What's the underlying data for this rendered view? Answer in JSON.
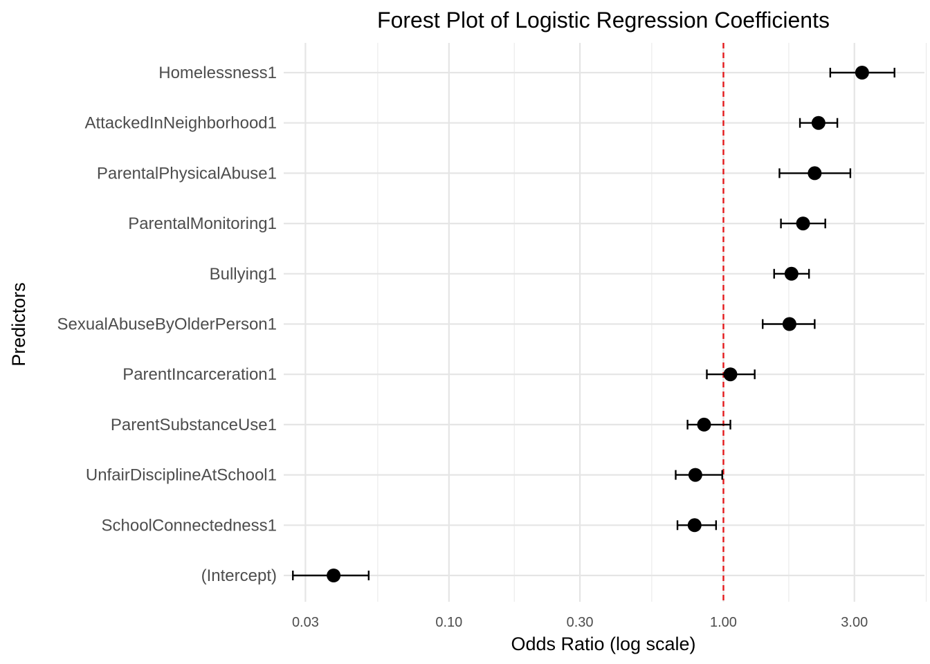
{
  "chart_data": {
    "type": "forest",
    "title": "Forest Plot of Logistic Regression Coefficients",
    "xlabel": "Odds Ratio (log scale)",
    "ylabel": "Predictors",
    "x_scale": "log10",
    "xlim": [
      0.025,
      5.4
    ],
    "x_ticks": [
      {
        "value": 0.03,
        "label": "0.03"
      },
      {
        "value": 0.1,
        "label": "0.10"
      },
      {
        "value": 0.3,
        "label": "0.30"
      },
      {
        "value": 1.0,
        "label": "1.00"
      },
      {
        "value": 3.0,
        "label": "3.00"
      }
    ],
    "x_minor_ticks": [
      0.055,
      0.173,
      0.548,
      1.73,
      5.48
    ],
    "reference_line": {
      "value": 1.0,
      "color": "#e41a1c",
      "style": "dashed"
    },
    "grid": true,
    "point_color": "#000000",
    "predictors": [
      {
        "name": "Homelessness1",
        "or": 3.2,
        "lower": 2.45,
        "upper": 4.2
      },
      {
        "name": "AttackedInNeighborhood1",
        "or": 2.22,
        "lower": 1.9,
        "upper": 2.6
      },
      {
        "name": "ParentalPhysicalAbuse1",
        "or": 2.15,
        "lower": 1.6,
        "upper": 2.9
      },
      {
        "name": "ParentalMonitoring1",
        "or": 1.95,
        "lower": 1.62,
        "upper": 2.35
      },
      {
        "name": "Bullying1",
        "or": 1.77,
        "lower": 1.53,
        "upper": 2.05
      },
      {
        "name": "SexualAbuseByOlderPerson1",
        "or": 1.74,
        "lower": 1.39,
        "upper": 2.15
      },
      {
        "name": "ParentIncarceration1",
        "or": 1.06,
        "lower": 0.87,
        "upper": 1.3
      },
      {
        "name": "ParentSubstanceUse1",
        "or": 0.85,
        "lower": 0.74,
        "upper": 1.06
      },
      {
        "name": "UnfairDisciplineAtSchool1",
        "or": 0.79,
        "lower": 0.67,
        "upper": 0.99
      },
      {
        "name": "SchoolConnectedness1",
        "or": 0.785,
        "lower": 0.68,
        "upper": 0.94
      },
      {
        "name": "(Intercept)",
        "or": 0.038,
        "lower": 0.027,
        "upper": 0.051
      }
    ]
  }
}
